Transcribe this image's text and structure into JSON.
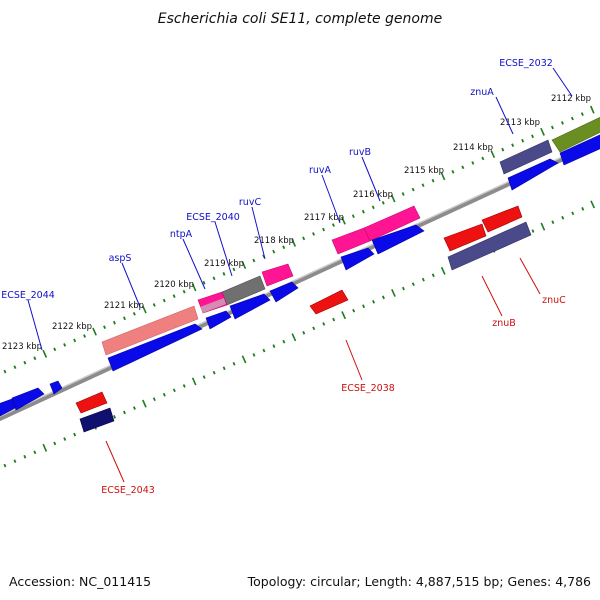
{
  "title": "Escherichia coli SE11, complete genome",
  "footer": {
    "accession": "Accession: NC_011415",
    "summary": "Topology: circular; Length: 4,887,515 bp; Genes: 4,786"
  },
  "colors": {
    "backbone": "#8c8c8c",
    "tick": "#1e7d1e",
    "forward_label": "#1010c8",
    "reverse_label": "#cc1010",
    "cds": "#0a0ae8",
    "rrna": "#f08080",
    "trna": "#ff1493",
    "misc": "#707070",
    "red_gene": "#ee1111",
    "navy_gene": "#101070",
    "purple_gene": "#4a4a8a",
    "olive_gene": "#6b8e23"
  },
  "scale_labels": [
    "2112 kbp",
    "2113 kbp",
    "2114 kbp",
    "2115 kbp",
    "2116 kbp",
    "2117 kbp",
    "2118 kbp",
    "2119 kbp",
    "2120 kbp",
    "2121 kbp",
    "2122 kbp",
    "2123 kbp"
  ],
  "forward_genes": [
    "ECSE_2032",
    "znuA",
    "ruvB",
    "ruvA",
    "ruvC",
    "ECSE_2040",
    "ntpA",
    "aspS",
    "ECSE_2044"
  ],
  "reverse_genes": [
    "znuC",
    "znuB",
    "ECSE_2038",
    "ECSE_2043"
  ]
}
